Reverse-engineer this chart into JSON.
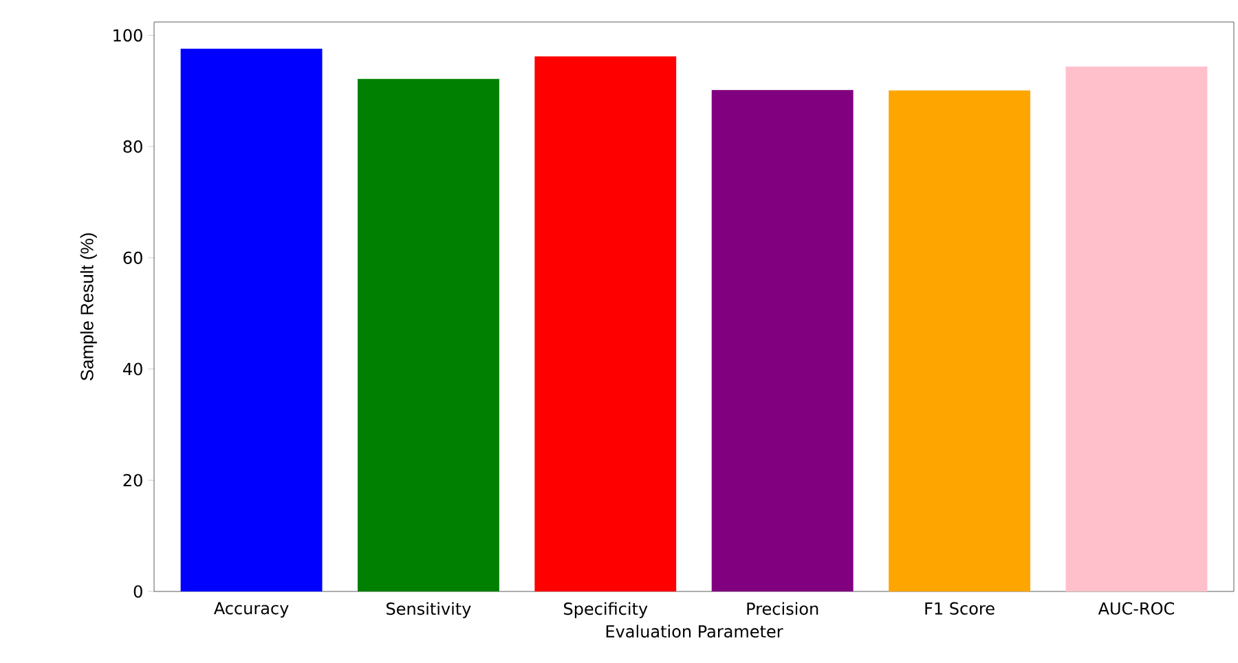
{
  "chart_data": {
    "type": "bar",
    "xlabel": "Evaluation Parameter",
    "ylabel": "Sample Result (%)",
    "categories": [
      "Accuracy",
      "Sensitivity",
      "Specificity",
      "Precision",
      "F1 Score",
      "AUC-ROC"
    ],
    "values": [
      97.6,
      92.2,
      96.2,
      90.2,
      90.1,
      94.4
    ],
    "colors": [
      "#0000ff",
      "#008000",
      "#ff0000",
      "#800080",
      "#ffa500",
      "#ffc0cb"
    ],
    "ylim": [
      0,
      102.4
    ],
    "yticks": [
      0,
      20,
      40,
      60,
      80,
      100
    ],
    "grid": false
  }
}
